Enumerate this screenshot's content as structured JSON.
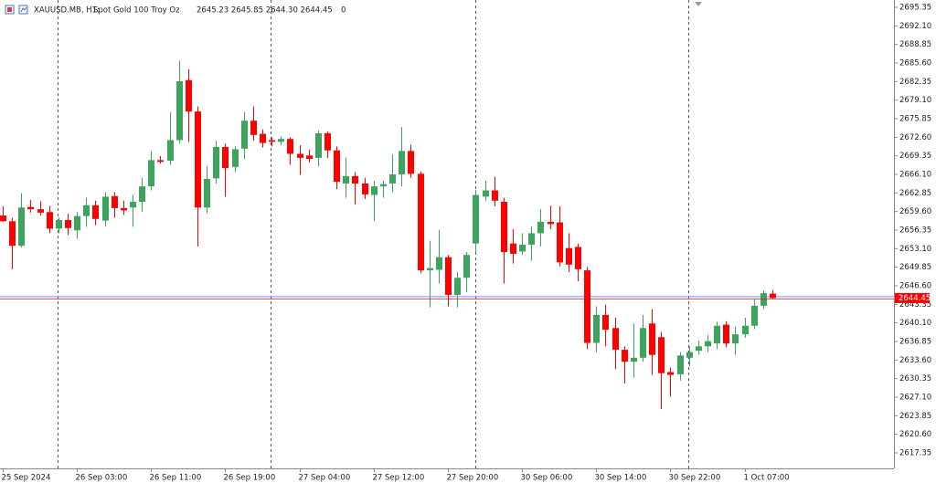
{
  "header": {
    "symbol": "XAUUSD.MB, H1:",
    "description": "Spot Gold 100 Troy Oz",
    "quote": "2645.23 2645.85 2644.30 2644.45",
    "extra": "0"
  },
  "chart_data": {
    "type": "candlestick",
    "categories": [
      "25 Sep 2024",
      null,
      null,
      null,
      null,
      null,
      null,
      null,
      "26 Sep 03:00",
      null,
      null,
      null,
      null,
      null,
      null,
      null,
      "26 Sep 11:00",
      null,
      null,
      null,
      null,
      null,
      null,
      null,
      "26 Sep 19:00",
      null,
      null,
      null,
      null,
      null,
      null,
      null,
      "27 Sep 04:00",
      null,
      null,
      null,
      null,
      null,
      null,
      null,
      "27 Sep 12:00",
      null,
      null,
      null,
      null,
      null,
      null,
      null,
      "27 Sep 20:00",
      null,
      null,
      null,
      null,
      null,
      null,
      null,
      "30 Sep 06:00",
      null,
      null,
      null,
      null,
      null,
      null,
      null,
      "30 Sep 14:00",
      null,
      null,
      null,
      null,
      null,
      null,
      null,
      "30 Sep 22:00",
      null,
      null,
      null,
      null,
      null,
      null,
      null,
      "1 Oct 07:00",
      null,
      null,
      null
    ],
    "open": [
      2658.9,
      2657.9,
      2653.6,
      2660.4,
      2660.0,
      2659.5,
      2656.6,
      2658.1,
      2656.3,
      2658.8,
      2660.7,
      2658.0,
      2662.3,
      2660.2,
      2660.3,
      2661.3,
      2664.0,
      2668.6,
      2668.5,
      2672.1,
      2682.6,
      2677.1,
      2660.3,
      2665.4,
      2670.9,
      2667.4,
      2670.6,
      2675.5,
      2673.2,
      2672.1,
      2671.8,
      2672.3,
      2669.7,
      2669.4,
      2669.0,
      2673.3,
      2670.3,
      2664.5,
      2665.8,
      2664.5,
      2662.5,
      2664.0,
      2664.5,
      2666.1,
      2670.2,
      2666.2,
      2649.3,
      2649.4,
      2651.6,
      2645.0,
      2648.0,
      2654.0,
      2662.2,
      2663.3,
      2661.3,
      2654.0,
      2652.6,
      2653.8,
      2655.8,
      2657.8,
      2657.7,
      2653.2,
      2653.4,
      2649.3,
      2636.6,
      2641.5,
      2639.2,
      2635.4,
      2633.3,
      2634.0,
      2640.0,
      2637.6,
      2631.5,
      2631.1,
      2634.0,
      2635.2,
      2636.0,
      2636.5,
      2639.8,
      2636.5,
      2638.1,
      2639.6,
      2643.1,
      2645.23
    ],
    "high": [
      2660.5,
      2658.5,
      2662.8,
      2661.6,
      2661.4,
      2660.6,
      2658.5,
      2659.2,
      2659.5,
      2662.0,
      2661.5,
      2663.0,
      2663.0,
      2661.5,
      2662.5,
      2665.5,
      2670.2,
      2669.3,
      2677.0,
      2686.0,
      2684.5,
      2678.0,
      2667.5,
      2672.0,
      2671.5,
      2671.0,
      2677.0,
      2678.0,
      2674.0,
      2672.6,
      2672.8,
      2672.6,
      2671.2,
      2670.4,
      2673.8,
      2673.6,
      2671.0,
      2669.0,
      2666.5,
      2665.5,
      2665.0,
      2665.0,
      2669.6,
      2674.4,
      2671.3,
      2666.6,
      2654.5,
      2656.4,
      2652.0,
      2649.0,
      2652.5,
      2663.4,
      2665.0,
      2665.7,
      2662.0,
      2656.5,
      2655.8,
      2657.0,
      2660.0,
      2660.6,
      2660.5,
      2655.8,
      2654.0,
      2649.9,
      2643.0,
      2643.3,
      2641.0,
      2636.0,
      2640.0,
      2641.5,
      2642.5,
      2638.5,
      2632.3,
      2635.0,
      2636.0,
      2637.0,
      2638.0,
      2640.3,
      2640.4,
      2639.5,
      2641.0,
      2644.3,
      2645.8,
      2645.85
    ],
    "low": [
      2657.8,
      2649.5,
      2653.3,
      2659.4,
      2658.9,
      2655.8,
      2655.8,
      2655.5,
      2654.8,
      2656.9,
      2657.2,
      2657.0,
      2658.5,
      2659.0,
      2656.9,
      2659.5,
      2663.3,
      2668.0,
      2667.8,
      2671.5,
      2671.8,
      2653.5,
      2659.3,
      2664.5,
      2662.2,
      2666.5,
      2668.8,
      2672.0,
      2670.8,
      2671.0,
      2671.2,
      2667.8,
      2666.0,
      2668.2,
      2667.5,
      2669.0,
      2663.5,
      2662.0,
      2660.8,
      2661.8,
      2657.9,
      2662.0,
      2663.0,
      2664.0,
      2665.5,
      2648.8,
      2642.8,
      2647.0,
      2643.0,
      2642.8,
      2645.5,
      2652.5,
      2661.5,
      2660.5,
      2647.0,
      2650.5,
      2652.0,
      2651.0,
      2653.5,
      2656.5,
      2650.0,
      2649.0,
      2647.4,
      2635.5,
      2635.0,
      2636.0,
      2632.0,
      2629.5,
      2630.5,
      2633.3,
      2631.0,
      2625.0,
      2627.2,
      2630.0,
      2632.5,
      2634.5,
      2635.0,
      2635.5,
      2635.8,
      2634.5,
      2637.5,
      2639.0,
      2642.5,
      2644.3
    ],
    "close": [
      2657.9,
      2653.6,
      2660.3,
      2660.0,
      2659.4,
      2656.6,
      2658.1,
      2656.7,
      2658.8,
      2660.7,
      2658.3,
      2662.2,
      2660.2,
      2659.8,
      2661.3,
      2664.0,
      2668.6,
      2668.3,
      2672.1,
      2682.4,
      2677.1,
      2660.3,
      2665.3,
      2670.9,
      2667.2,
      2670.5,
      2675.5,
      2673.0,
      2671.6,
      2671.8,
      2672.3,
      2669.7,
      2669.0,
      2668.8,
      2673.3,
      2670.3,
      2664.8,
      2665.8,
      2664.5,
      2662.6,
      2664.0,
      2664.4,
      2666.1,
      2670.2,
      2666.2,
      2649.3,
      2649.7,
      2651.6,
      2645.0,
      2648.0,
      2652.0,
      2662.5,
      2663.3,
      2661.5,
      2652.5,
      2652.2,
      2653.8,
      2655.8,
      2657.8,
      2657.4,
      2650.7,
      2650.3,
      2649.5,
      2636.6,
      2641.5,
      2638.9,
      2635.4,
      2633.3,
      2634.0,
      2639.2,
      2634.5,
      2631.3,
      2631.0,
      2634.4,
      2635.0,
      2636.0,
      2636.9,
      2639.6,
      2636.5,
      2638.1,
      2639.6,
      2643.1,
      2645.3,
      2644.45
    ],
    "up_color": "#3da35d",
    "down_color": "#ff0000",
    "ylim": [
      2614.63,
      2696.63
    ],
    "yticks": [
      2695.35,
      {
        "value": 2692.1,
        "label": "2692.10"
      },
      2688.85,
      {
        "value": 2685.6,
        "label": "2685.60"
      },
      2682.35,
      {
        "value": 2679.1,
        "label": "2679.10"
      },
      2675.85,
      {
        "value": 2672.6,
        "label": "2672.60"
      },
      2669.35,
      {
        "value": 2666.1,
        "label": "2666.10"
      },
      2662.85,
      {
        "value": 2659.6,
        "label": "2659.60"
      },
      2656.35,
      {
        "value": 2653.1,
        "label": "2653.10"
      },
      2649.85,
      {
        "value": 2646.6,
        "label": "2646.60"
      },
      2643.35,
      {
        "value": 2640.1,
        "label": "2640.10"
      },
      2636.85,
      {
        "value": 2633.6,
        "label": "2633.60"
      },
      2630.35,
      {
        "value": 2627.1,
        "label": "2627.10"
      },
      2623.85,
      {
        "value": 2620.6,
        "label": "2620.60"
      },
      2617.35
    ],
    "last_price": {
      "value": 2644.45,
      "label": "2644.45"
    },
    "last_price_color": "#ff0000",
    "ask_price": 2644.7,
    "ask_color": "#7b8cff"
  }
}
